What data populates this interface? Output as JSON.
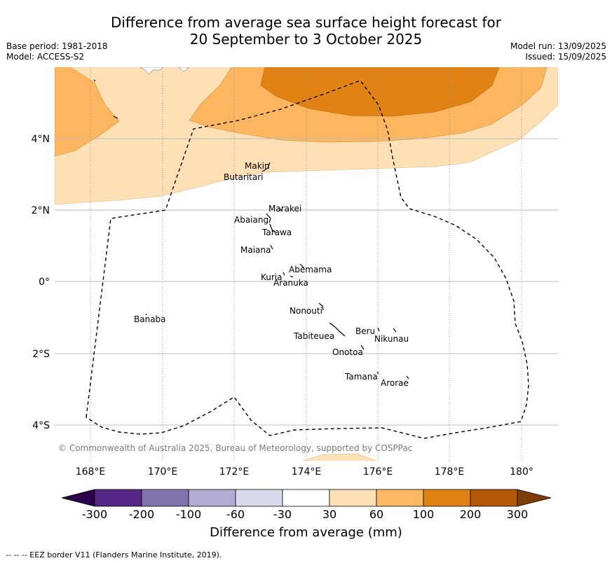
{
  "title": {
    "line1": "Difference from average sea surface height forecast for",
    "line2": "20 September to 3 October 2025"
  },
  "meta": {
    "base_period": "Base period: 1981-2018",
    "model": "Model: ACCESS-S2",
    "model_run": "Model run: 13/09/2025",
    "issued": "Issued: 15/09/2025"
  },
  "map": {
    "lat_labels": [
      "4°N",
      "2°N",
      "0°",
      "2°S",
      "4°S"
    ],
    "lon_labels": [
      "168°E",
      "170°E",
      "172°E",
      "174°E",
      "176°E",
      "178°E",
      "180°"
    ],
    "places": [
      "Makin",
      "Butaritari",
      "Marakei",
      "Abaiang",
      "Tarawa",
      "Maiana",
      "Abemama",
      "Kuria",
      "Aranuka",
      "Banaba",
      "Nonouti",
      "Beru",
      "Nikunau",
      "Tabiteuea",
      "Onotoa",
      "Tamana",
      "Arorae"
    ],
    "copyright": "© Commonwealth of Australia 2025, Bureau of Meteorology, supported by COSPPac",
    "colors": {
      "c30_60": "#fee0b6",
      "c60_100": "#fbb65f",
      "c100_200": "#e08214",
      "c200_300": "#b35806",
      "land": "#ffffff",
      "grid": "#bbbbbb"
    }
  },
  "colorbar": {
    "ticks": [
      "-300",
      "-200",
      "-100",
      "-60",
      "-30",
      "30",
      "60",
      "100",
      "200",
      "300"
    ],
    "colors": [
      "#2d004b",
      "#542788",
      "#8073ac",
      "#b2abd2",
      "#d8daeb",
      "#ffffff",
      "#fee0b6",
      "#fdb863",
      "#e08214",
      "#b35806",
      "#7f3b08"
    ],
    "title": "Difference from average (mm)"
  },
  "footer": "-- -- -- EEZ border V11 (Flanders Marine Institute, 2019)."
}
